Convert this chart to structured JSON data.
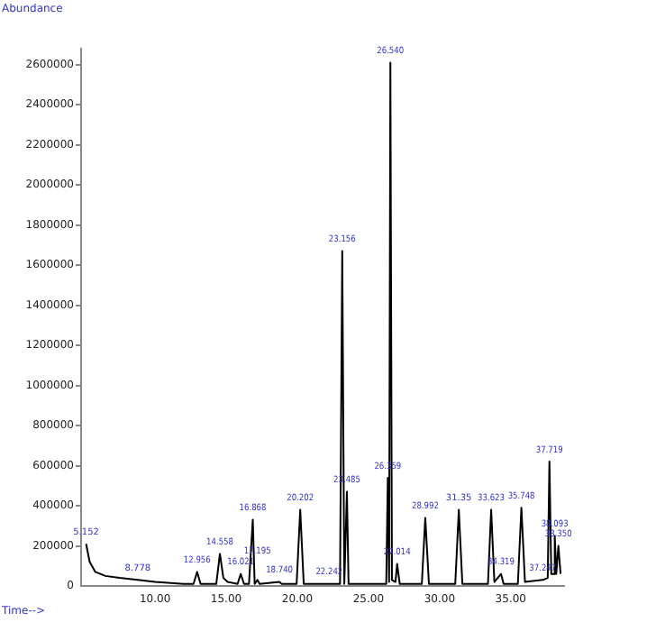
{
  "chart_data": {
    "type": "line",
    "xlabel": "Time-->",
    "ylabel": "Abundance",
    "series": [
      {
        "color": "#000000",
        "x": [
          5.152,
          5.4,
          5.8,
          6.5,
          7.5,
          8.778,
          10,
          12,
          12.7,
          12.956,
          13.2,
          14.3,
          14.558,
          14.8,
          15.1,
          15.8,
          16.021,
          16.25,
          16.6,
          16.868,
          17.0,
          17.195,
          17.35,
          18.74,
          18.9,
          19.95,
          20.202,
          20.45,
          22.242,
          23.0,
          23.156,
          23.3,
          23.485,
          23.6,
          26.25,
          26.359,
          26.45,
          26.54,
          26.65,
          26.9,
          27.014,
          27.2,
          28.75,
          28.992,
          29.25,
          31.1,
          31.35,
          31.6,
          33.4,
          33.623,
          33.85,
          34.319,
          34.5,
          35.5,
          35.748,
          36.0,
          37.247,
          37.6,
          37.719,
          37.85,
          38.0,
          38.093,
          38.2,
          38.35,
          38.5
        ],
        "values": [
          210000,
          120000,
          70000,
          50000,
          40000,
          30000,
          20000,
          10000,
          10000,
          70000,
          10000,
          10000,
          160000,
          40000,
          20000,
          10000,
          60000,
          10000,
          10000,
          330000,
          10000,
          30000,
          10000,
          20000,
          10000,
          10000,
          380000,
          10000,
          10000,
          10000,
          1670000,
          10000,
          470000,
          10000,
          10000,
          540000,
          20000,
          2610000,
          30000,
          20000,
          110000,
          10000,
          10000,
          340000,
          10000,
          10000,
          380000,
          10000,
          10000,
          380000,
          20000,
          60000,
          10000,
          10000,
          390000,
          20000,
          30000,
          40000,
          620000,
          60000,
          60000,
          250000,
          60000,
          200000,
          60000
        ]
      }
    ],
    "xlim": [
      4.8,
      38.75
    ],
    "ylim": [
      0,
      2680000
    ],
    "xticks": [
      {
        "value": 10,
        "label": "10.00"
      },
      {
        "value": 15,
        "label": "15.00"
      },
      {
        "value": 20,
        "label": "20.00"
      },
      {
        "value": 25,
        "label": "25.00"
      },
      {
        "value": 30,
        "label": "30.00"
      },
      {
        "value": 35,
        "label": "35.00"
      }
    ],
    "yticks": [
      0,
      200000,
      400000,
      600000,
      800000,
      1000000,
      1200000,
      1400000,
      1600000,
      1800000,
      2000000,
      2200000,
      2400000,
      2600000
    ],
    "grid": false,
    "legend": false,
    "marker": "none",
    "annotations": [
      {
        "text": "5.152",
        "x": 5.152,
        "y": 210000
      },
      {
        "text": "8.778",
        "x": 8.778,
        "y": 30000
      },
      {
        "text": "12.956",
        "x": 12.956,
        "y": 70000
      },
      {
        "text": "14.558",
        "x": 14.558,
        "y": 160000
      },
      {
        "text": "16.021",
        "x": 16.021,
        "y": 60000
      },
      {
        "text": "16.868",
        "x": 16.868,
        "y": 330000
      },
      {
        "text": "17.195",
        "x": 17.195,
        "y": 30000
      },
      {
        "text": "18.740",
        "x": 18.74,
        "y": 20000
      },
      {
        "text": "20.202",
        "x": 20.202,
        "y": 380000
      },
      {
        "text": "22.242",
        "x": 22.242,
        "y": 10000
      },
      {
        "text": "23.156",
        "x": 23.156,
        "y": 1670000
      },
      {
        "text": "23.485",
        "x": 23.485,
        "y": 470000
      },
      {
        "text": "26.540",
        "x": 26.54,
        "y": 2610000
      },
      {
        "text": "26.359",
        "x": 26.359,
        "y": 540000
      },
      {
        "text": "27.014",
        "x": 27.014,
        "y": 110000
      },
      {
        "text": "28.992",
        "x": 28.992,
        "y": 340000
      },
      {
        "text": "31.35",
        "x": 31.35,
        "y": 380000
      },
      {
        "text": "33.623",
        "x": 33.623,
        "y": 380000
      },
      {
        "text": "35.748",
        "x": 35.748,
        "y": 390000
      },
      {
        "text": "34.319",
        "x": 34.319,
        "y": 60000
      },
      {
        "text": "37.247",
        "x": 37.247,
        "y": 30000
      },
      {
        "text": "37.719",
        "x": 37.719,
        "y": 620000
      },
      {
        "text": "38.093",
        "x": 38.093,
        "y": 250000
      },
      {
        "text": "38.350",
        "x": 38.35,
        "y": 200000
      }
    ]
  }
}
